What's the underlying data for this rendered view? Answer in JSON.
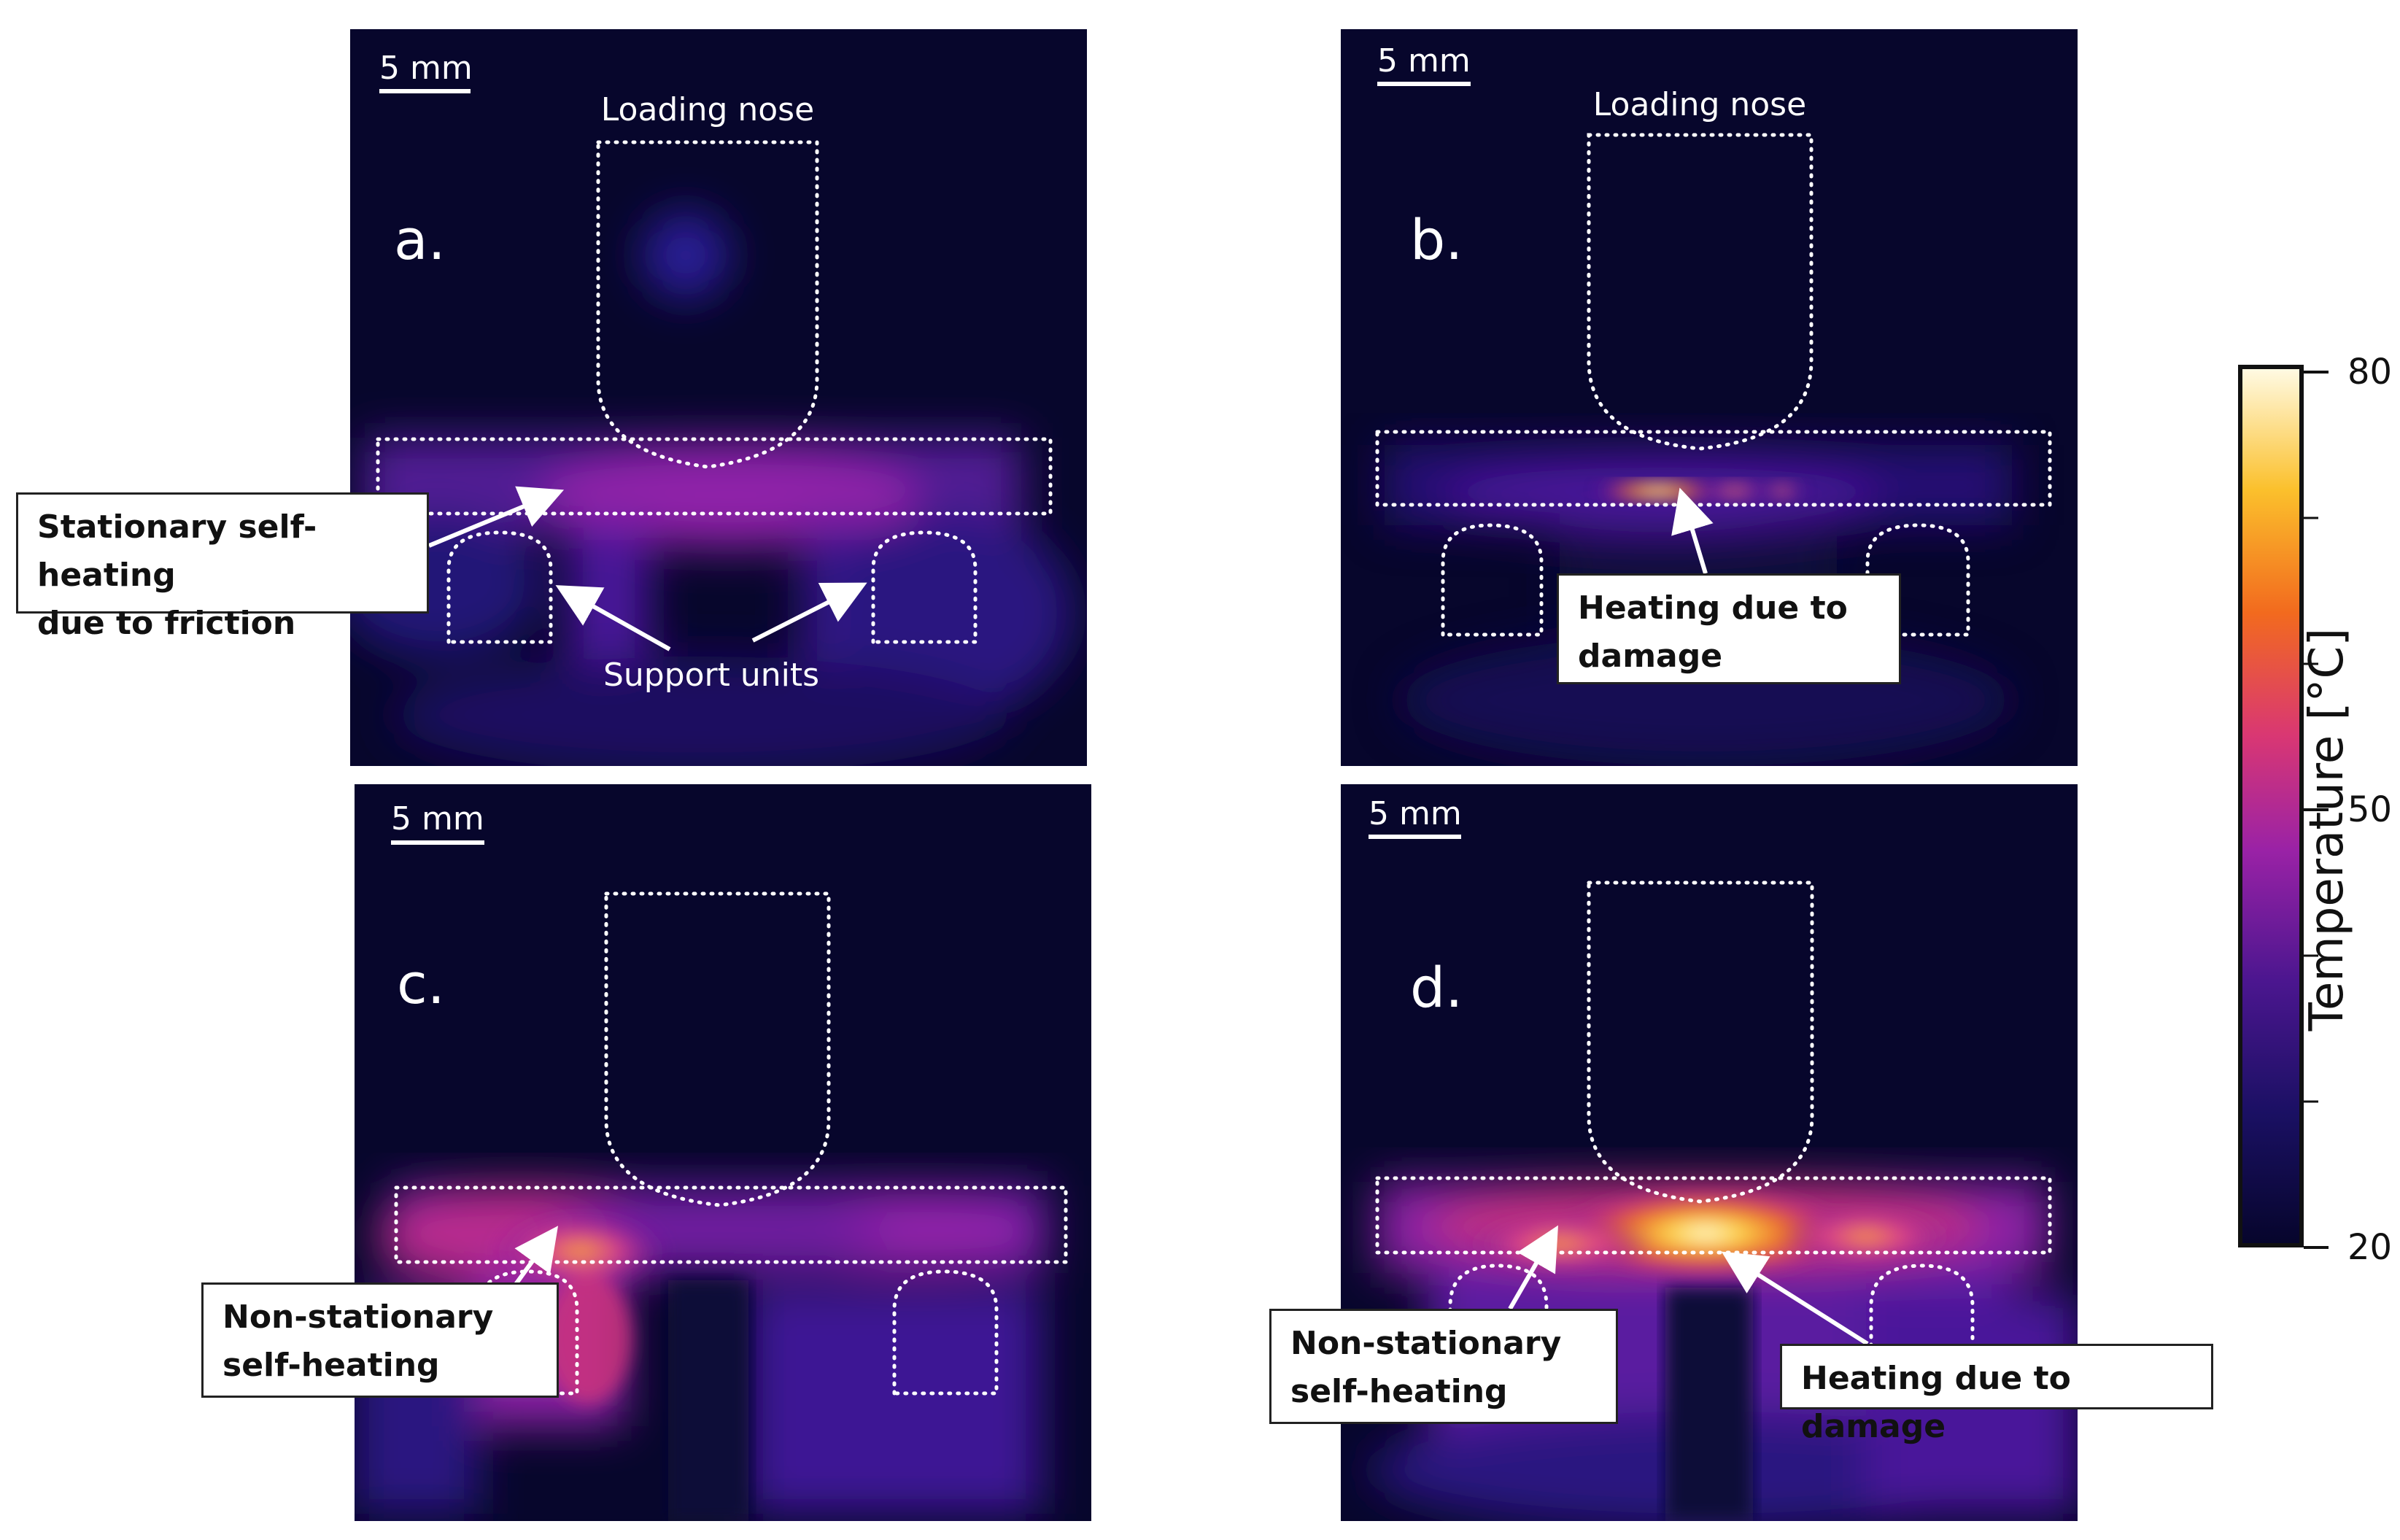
{
  "scale_bar_label": "5 mm",
  "panels": {
    "a": {
      "label": "a.",
      "loading_nose_label": "Loading nose",
      "support_label": "Support units"
    },
    "b": {
      "label": "b.",
      "loading_nose_label": "Loading nose"
    },
    "c": {
      "label": "c."
    },
    "d": {
      "label": "d."
    }
  },
  "callouts": {
    "a": "Stationary self-heating\ndue to friction",
    "b": "Heating due to\ndamage",
    "c": "Non-stationary\nself-heating",
    "d_left": "Non-stationary\nself-heating",
    "d_right": "Heating due to damage"
  },
  "colorbar": {
    "title": "Temperature [°C]",
    "ticks": [
      "80",
      "50",
      "20"
    ],
    "min": 20,
    "max": 80,
    "colormap": "inferno-like: #06052b → #2a0c7a → #8a1ca6 → #d63a7a → #f07a10 → #fbd32e → #fff9d8"
  }
}
